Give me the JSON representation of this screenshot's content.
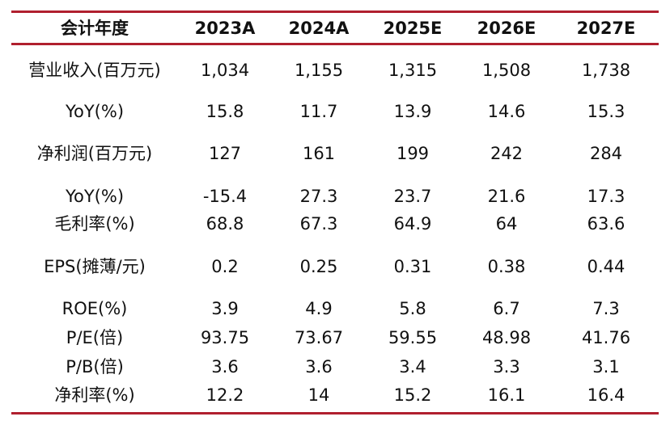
{
  "table": {
    "header": [
      "会计年度",
      "2023A",
      "2024A",
      "2025E",
      "2026E",
      "2027E"
    ],
    "rows": [
      [
        "营业收入(百万元)",
        "1,034",
        "1,155",
        "1,315",
        "1,508",
        "1,738"
      ],
      [
        "YoY(%)",
        "15.8",
        "11.7",
        "13.9",
        "14.6",
        "15.3"
      ],
      [
        "净利润(百万元)",
        "127",
        "161",
        "199",
        "242",
        "284"
      ],
      [
        "YoY(%)",
        "-15.4",
        "27.3",
        "23.7",
        "21.6",
        "17.3"
      ],
      [
        "毛利率(%)",
        "68.8",
        "67.3",
        "64.9",
        "64",
        "63.6"
      ],
      [
        "EPS(摊薄/元)",
        "0.2",
        "0.25",
        "0.31",
        "0.38",
        "0.44"
      ],
      [
        "ROE(%)",
        "3.9",
        "4.9",
        "5.8",
        "6.7",
        "7.3"
      ],
      [
        "P/E(倍)",
        "93.75",
        "73.67",
        "59.55",
        "48.98",
        "41.76"
      ],
      [
        "P/B(倍)",
        "3.6",
        "3.6",
        "3.4",
        "3.3",
        "3.1"
      ],
      [
        "净利率(%)",
        "12.2",
        "14",
        "15.2",
        "16.1",
        "16.4"
      ]
    ]
  },
  "colors": {
    "rule": "#b01f2e",
    "text": "#111111",
    "background": "#ffffff"
  }
}
